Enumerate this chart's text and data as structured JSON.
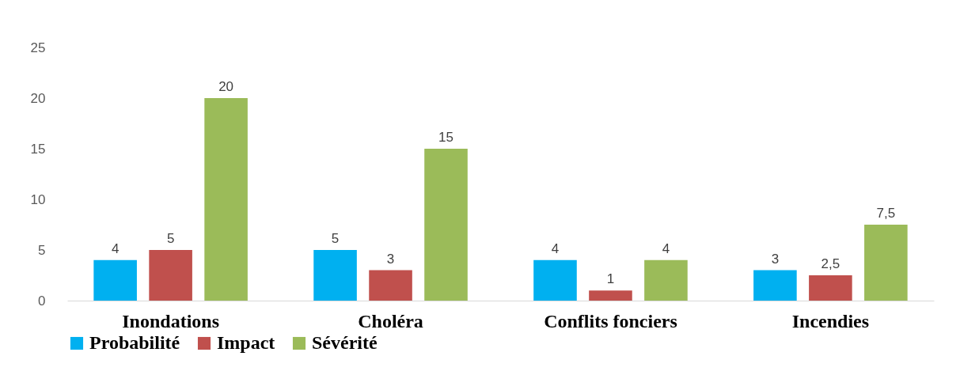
{
  "chart_data": {
    "type": "bar",
    "categories": [
      "Inondations",
      "Choléra",
      "Conflits fonciers",
      "Incendies"
    ],
    "series": [
      {
        "name": "Probabilité",
        "color": "#00b0f0",
        "values": [
          4,
          5,
          4,
          3
        ],
        "value_labels": [
          "4",
          "5",
          "4",
          "3"
        ]
      },
      {
        "name": "Impact",
        "color": "#c0504d",
        "values": [
          5,
          3,
          1,
          2.5
        ],
        "value_labels": [
          "5",
          "3",
          "1",
          "2,5"
        ]
      },
      {
        "name": "Sévérité",
        "color": "#9bbb59",
        "values": [
          20,
          15,
          4,
          7.5
        ],
        "value_labels": [
          "20",
          "15",
          "4",
          "7,5"
        ]
      }
    ],
    "ylim": [
      0,
      25
    ],
    "yticks": [
      0,
      5,
      10,
      15,
      20,
      25
    ],
    "legend": "bottom"
  }
}
